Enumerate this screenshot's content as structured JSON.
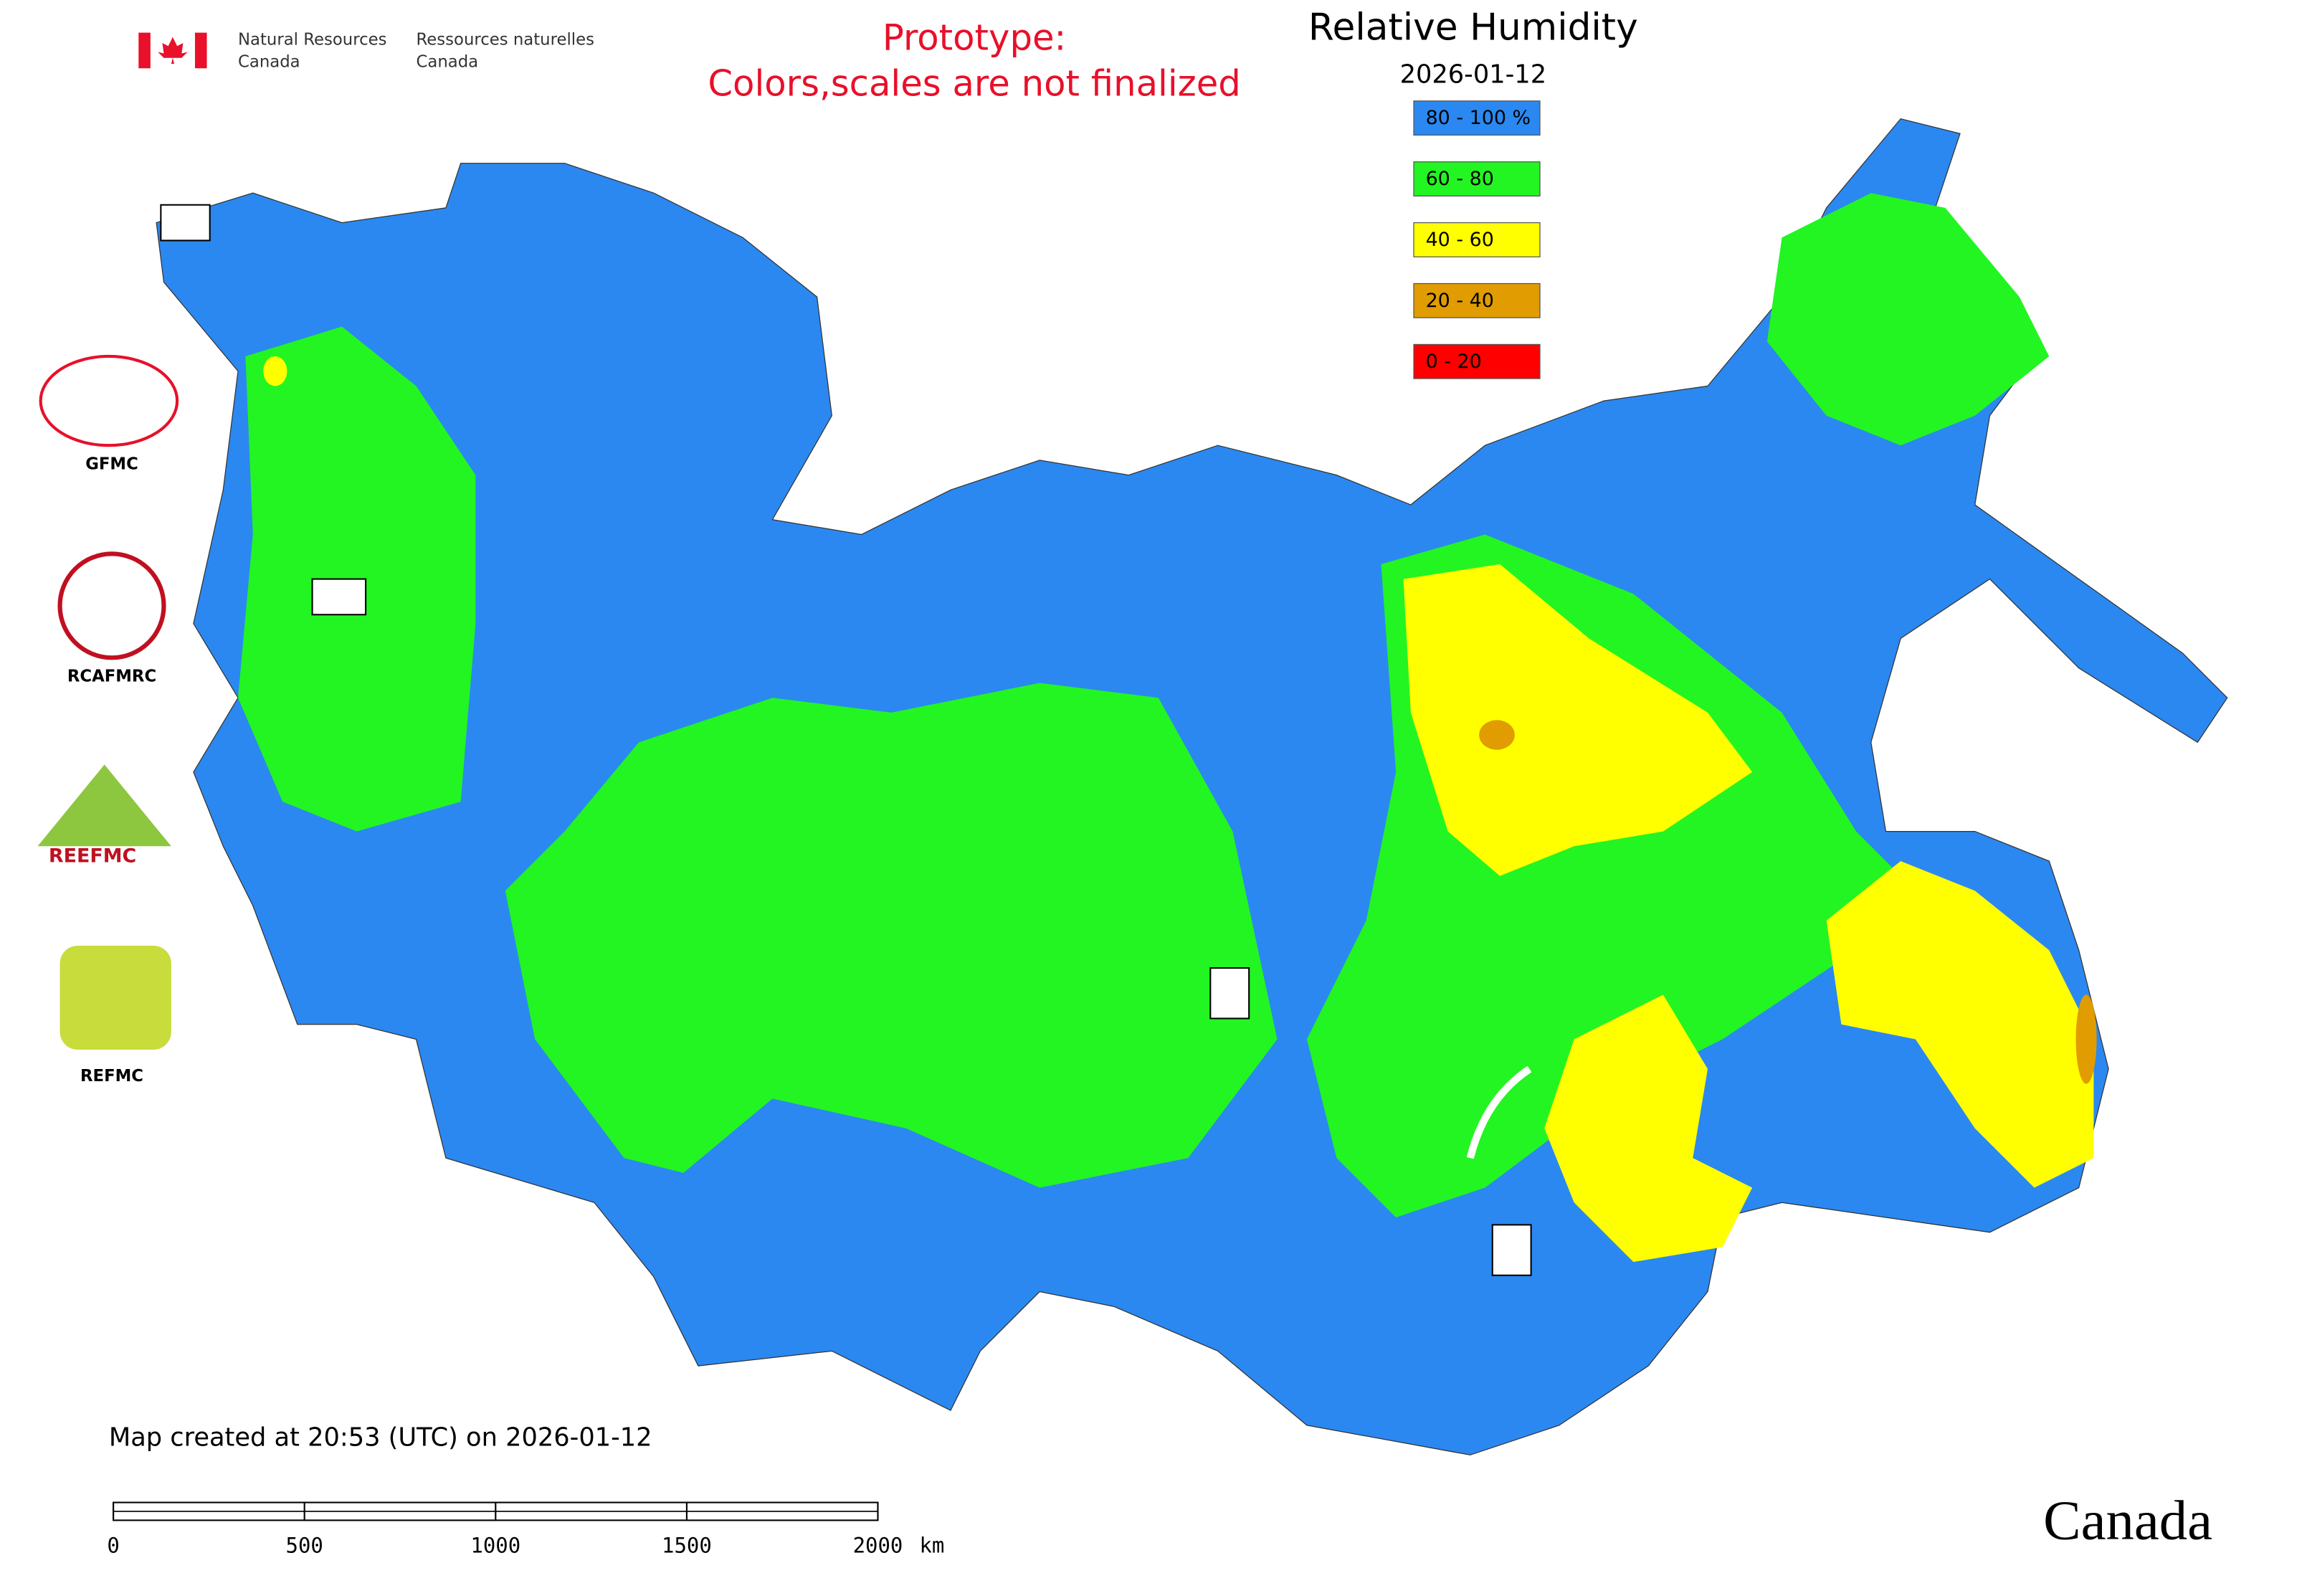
{
  "agency": {
    "en_line1": "Natural Resources",
    "en_line2": "Canada",
    "fr_line1": "Ressources naturelles",
    "fr_line2": "Canada"
  },
  "notice": [
    "Prototype:",
    "Colors,scales are not finalized"
  ],
  "title": "Relative Humidity",
  "date": "2026-01-12",
  "legend": [
    {
      "label": "80 - 100 %",
      "color": "#2b88f0"
    },
    {
      "label": "60 - 80",
      "color": "#22f522"
    },
    {
      "label": "40 - 60",
      "color": "#ffff00"
    },
    {
      "label": "20 - 40",
      "color": "#e09c00"
    },
    {
      "label": "0 - 20",
      "color": "#ff0000"
    }
  ],
  "logos": [
    "GFMC",
    "RCAFMRC",
    "REEFMC",
    "REFMC"
  ],
  "footer": "Map created at 20:53 (UTC) on 2026-01-12",
  "scale": {
    "range": [
      0,
      2000
    ],
    "ticks": [
      0,
      500,
      1000,
      1500,
      2000
    ],
    "unit": "km"
  },
  "wordmark": "Canada"
}
